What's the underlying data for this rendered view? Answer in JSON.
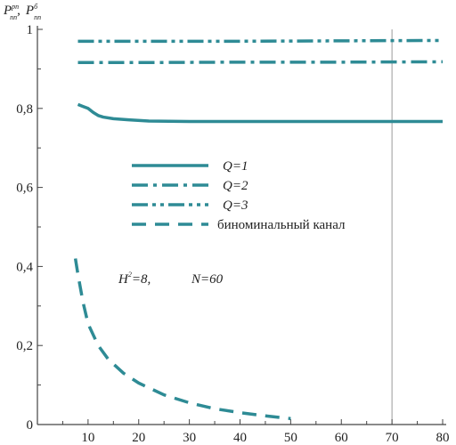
{
  "chart_data": {
    "type": "line",
    "ylabel_parts": {
      "a_main": "P",
      "a_sup": "рп",
      "a_sub": "пп",
      "sep": ",",
      "b_main": "P",
      "b_sup": "б",
      "b_sub": "пп"
    },
    "xlim": [
      0,
      80
    ],
    "ylim": [
      0,
      1
    ],
    "x_ticks": [
      10,
      20,
      30,
      40,
      50,
      60,
      70,
      80
    ],
    "x_tick_labels": [
      "10",
      "20",
      "30",
      "40",
      "50",
      "60",
      "70",
      "80"
    ],
    "y_ticks": [
      0,
      0.2,
      0.4,
      0.6,
      0.8,
      1
    ],
    "y_tick_labels": [
      "0",
      "0,2",
      "0,4",
      "0,6",
      "0,8",
      "1"
    ],
    "vertical_grid_line_at": 70,
    "color": "#2e8b95",
    "series": [
      {
        "name": "Q=1",
        "dash": "solid",
        "x": [
          8,
          9,
          10,
          11,
          12,
          13,
          15,
          18,
          22,
          30,
          40,
          50,
          60,
          70,
          80
        ],
        "y": [
          0.81,
          0.805,
          0.8,
          0.79,
          0.782,
          0.778,
          0.774,
          0.771,
          0.768,
          0.767,
          0.767,
          0.767,
          0.767,
          0.767,
          0.767
        ]
      },
      {
        "name": "Q=2",
        "dash": "dashdot",
        "x": [
          8,
          20,
          40,
          60,
          80
        ],
        "y": [
          0.916,
          0.916,
          0.917,
          0.917,
          0.918
        ]
      },
      {
        "name": "Q=3",
        "dash": "dashdotdot",
        "x": [
          8,
          20,
          40,
          60,
          80
        ],
        "y": [
          0.97,
          0.97,
          0.97,
          0.971,
          0.972
        ]
      },
      {
        "name": "биноминальный канал",
        "dash": "dashed",
        "x": [
          7.5,
          8,
          9,
          10,
          12,
          14,
          17,
          20,
          25,
          30,
          35,
          40,
          45,
          50
        ],
        "y": [
          0.42,
          0.38,
          0.31,
          0.255,
          0.2,
          0.165,
          0.13,
          0.105,
          0.075,
          0.055,
          0.04,
          0.03,
          0.022,
          0.015
        ]
      }
    ],
    "legend": [
      {
        "label": "Q=1",
        "dash": "solid",
        "italic": true
      },
      {
        "label": "Q=2",
        "dash": "dashdot",
        "italic": true
      },
      {
        "label": "Q=3",
        "dash": "dashdotdot",
        "italic": true
      },
      {
        "label": "биноминальный канал",
        "dash": "dashed",
        "italic": false
      }
    ],
    "annotation": {
      "h_main": "H",
      "h_sup": "2",
      "h_rest": "=8,",
      "n_text": "N=60"
    }
  }
}
